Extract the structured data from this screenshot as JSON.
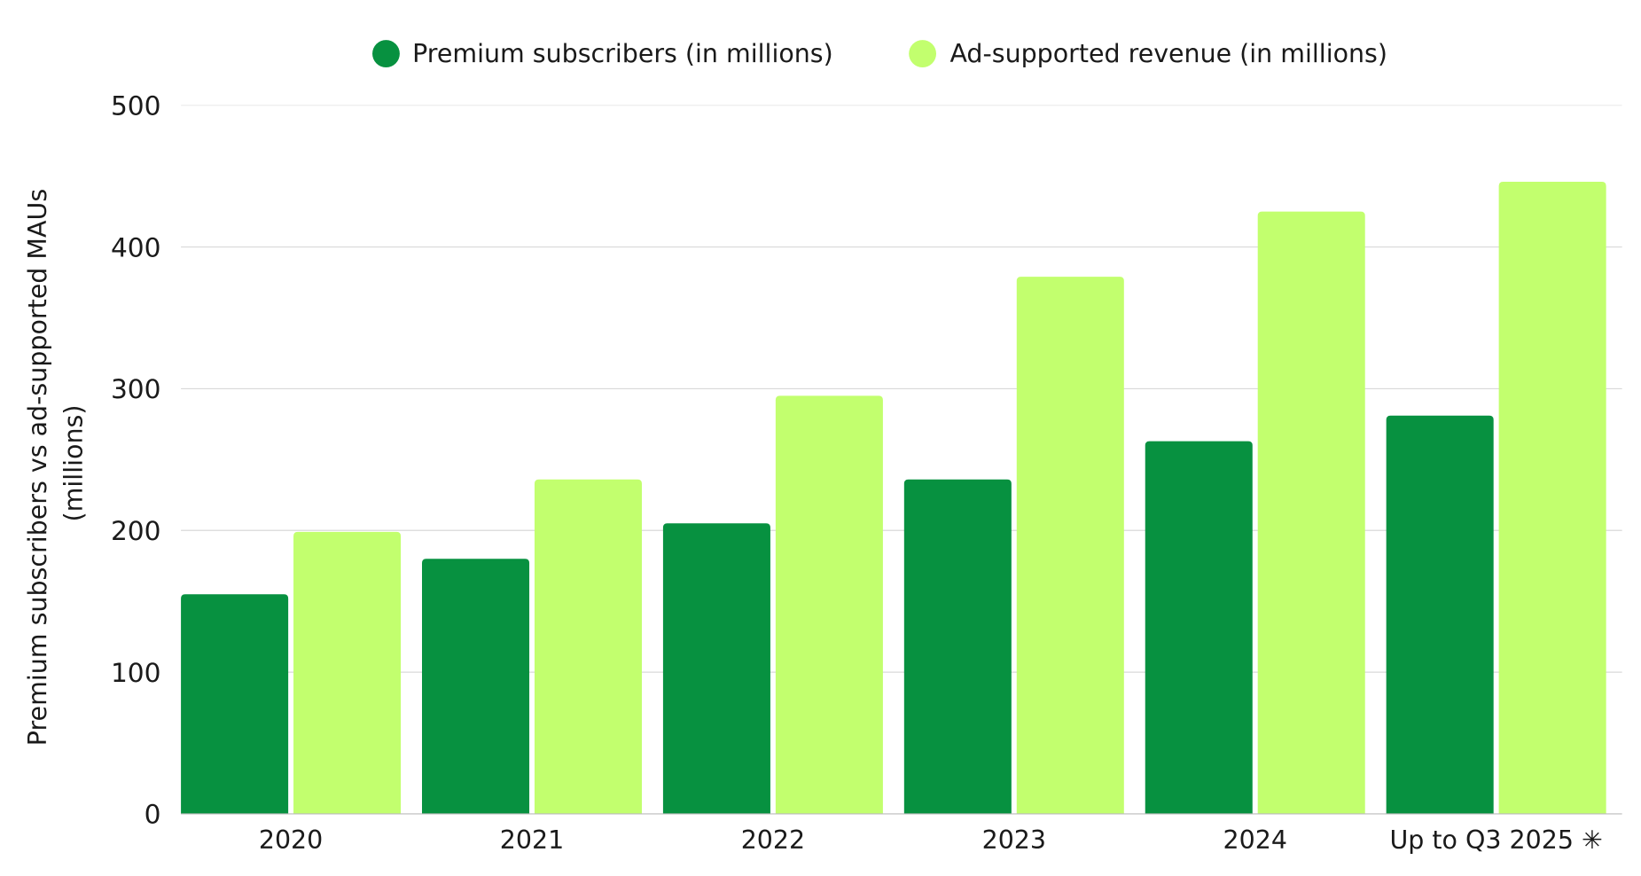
{
  "chart_data": {
    "type": "bar",
    "title": "",
    "xlabel": "",
    "ylabel": "Premium subscribers vs ad-supported MAUs (millions)",
    "ylabel_lines": [
      "Premium subscribers vs ad-supported MAUs",
      "(millions)"
    ],
    "ylim": [
      0,
      500
    ],
    "yticks": [
      0,
      100,
      200,
      300,
      400,
      500
    ],
    "grid": true,
    "legend_position": "top-center",
    "categories": [
      "2020",
      "2021",
      "2022",
      "2023",
      "2024",
      "Up to Q3 2025 ✳"
    ],
    "series": [
      {
        "name": "Premium subscribers (in millions)",
        "color": "#079140",
        "values": [
          155,
          180,
          205,
          236,
          263,
          281
        ]
      },
      {
        "name": "Ad-supported revenue (in millions)",
        "color": "#C2FF6E",
        "values": [
          199,
          236,
          295,
          379,
          425,
          446
        ]
      }
    ]
  }
}
